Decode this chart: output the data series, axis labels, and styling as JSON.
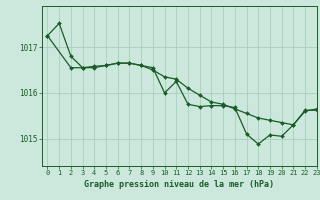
{
  "title": "Graphe pression niveau de la mer (hPa)",
  "bg_color": "#cce8dc",
  "grid_color": "#aacfbe",
  "line_color": "#1a5c28",
  "xlim": [
    -0.5,
    23
  ],
  "ylim": [
    1014.4,
    1017.9
  ],
  "yticks": [
    1015,
    1016,
    1017
  ],
  "xticks": [
    0,
    1,
    2,
    3,
    4,
    5,
    6,
    7,
    8,
    9,
    10,
    11,
    12,
    13,
    14,
    15,
    16,
    17,
    18,
    19,
    20,
    21,
    22,
    23
  ],
  "series_smooth": {
    "x": [
      0,
      1,
      2,
      3,
      4,
      5,
      6,
      7,
      8,
      9,
      10,
      11,
      12,
      13,
      14,
      15,
      16,
      17,
      18,
      19,
      20,
      21,
      22,
      23
    ],
    "y": [
      1017.25,
      1017.52,
      1016.8,
      1016.55,
      1016.55,
      1016.6,
      1016.65,
      1016.65,
      1016.6,
      1016.5,
      1016.35,
      1016.3,
      1016.1,
      1015.95,
      1015.8,
      1015.75,
      1015.65,
      1015.55,
      1015.45,
      1015.4,
      1015.35,
      1015.3,
      1015.6,
      1015.65
    ]
  },
  "series_jagged": {
    "x": [
      0,
      2,
      3,
      4,
      5,
      6,
      7,
      8,
      9,
      10,
      11,
      12,
      13,
      14,
      15,
      16,
      17,
      18,
      19,
      20,
      21,
      22,
      23
    ],
    "y": [
      1017.25,
      1016.55,
      1016.55,
      1016.58,
      1016.6,
      1016.65,
      1016.65,
      1016.6,
      1016.55,
      1016.0,
      1016.25,
      1015.75,
      1015.7,
      1015.72,
      1015.72,
      1015.68,
      1015.1,
      1014.88,
      1015.08,
      1015.05,
      1015.3,
      1015.62,
      1015.62
    ]
  }
}
